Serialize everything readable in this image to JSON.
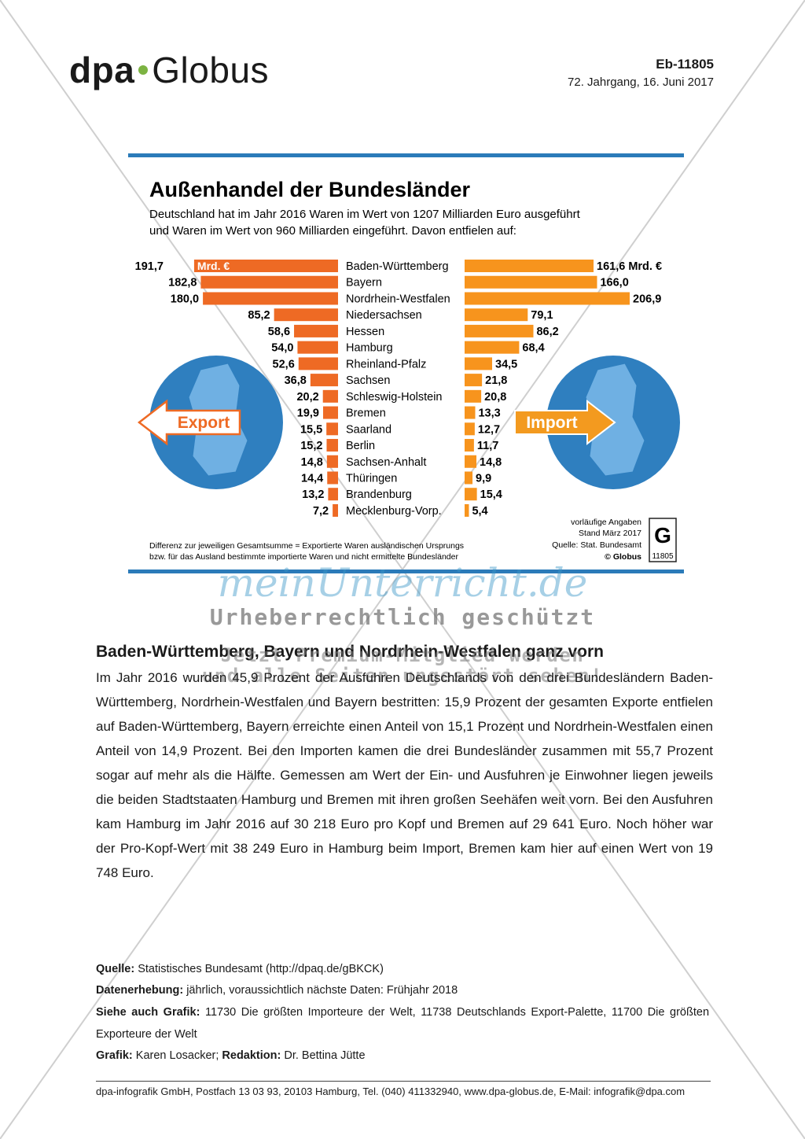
{
  "header": {
    "brand": "dpa",
    "brand2": "Globus",
    "code": "Eb-11805",
    "issue": "72. Jahrgang, 16. Juni 2017"
  },
  "chart_data": {
    "type": "butterfly-bar",
    "title": "Außenhandel der Bundesländer",
    "subtitle": [
      "Deutschland hat im Jahr 2016 Waren im Wert von 1207 Milliarden Euro ausgeführt",
      "und Waren im Wert von 960 Milliarden eingeführt. Davon entfielen auf:"
    ],
    "unit": "Mrd. €",
    "categories": [
      "Baden-Württemberg",
      "Bayern",
      "Nordrhein-Westfalen",
      "Niedersachsen",
      "Hessen",
      "Hamburg",
      "Rheinland-Pfalz",
      "Sachsen",
      "Schleswig-Holstein",
      "Bremen",
      "Saarland",
      "Berlin",
      "Sachsen-Anhalt",
      "Thüringen",
      "Brandenburg",
      "Mecklenburg-Vorp."
    ],
    "series": [
      {
        "name": "Export",
        "color": "#ee6a24",
        "values": [
          191.7,
          182.8,
          180.0,
          85.2,
          58.6,
          54.0,
          52.6,
          36.8,
          20.2,
          19.9,
          15.5,
          15.2,
          14.8,
          14.4,
          13.2,
          7.2
        ],
        "value_labels": [
          "191,7",
          "182,8",
          "180,0",
          "85,2",
          "58,6",
          "54,0",
          "52,6",
          "36,8",
          "20,2",
          "19,9",
          "15,5",
          "15,2",
          "14,8",
          "14,4",
          "13,2",
          "7,2"
        ]
      },
      {
        "name": "Import",
        "color": "#f7941d",
        "values": [
          161.6,
          166.0,
          206.9,
          79.1,
          86.2,
          68.4,
          34.5,
          21.8,
          20.8,
          13.3,
          12.7,
          11.7,
          14.8,
          9.9,
          15.4,
          5.4
        ],
        "value_labels": [
          "161,6",
          "166,0",
          "206,9",
          "79,1",
          "86,2",
          "68,4",
          "34,5",
          "21,8",
          "20,8",
          "13,3",
          "12,7",
          "11,7",
          "14,8",
          "9,9",
          "15,4",
          "5,4"
        ]
      }
    ],
    "note": [
      "Differenz zur jeweiligen Gesamtsumme = Exportierte Waren ausländischen Ursprungs",
      "bzw. für das Ausland bestimmte importierte Waren und nicht ermittelte Bundesländer"
    ],
    "source_notes": [
      "vorläufige Angaben",
      "Stand März 2017",
      "Quelle: Stat. Bundesamt",
      "© Globus"
    ],
    "badge": "11805"
  },
  "watermark": {
    "site": "meinUnterricht.de",
    "copyright": "Urheberrechtlich geschützt",
    "promo": [
      "Jetzt Premium-Mitglied werden",
      "und alle Seiten ungestört sehen!"
    ]
  },
  "article": {
    "heading": "Baden-Württemberg, Bayern und Nordrhein-Westfalen ganz vorn",
    "body": "Im Jahr 2016 wurden 45,9 Prozent der Ausfuhren Deutschlands von den drei Bundesländern Baden-Württemberg, Nordrhein-Westfalen und Bayern bestritten: 15,9 Prozent der gesamten Exporte entfielen auf Baden-Württemberg, Bayern erreichte einen Anteil von 15,1 Prozent und Nordrhein-Westfalen einen Anteil von 14,9 Prozent. Bei den Importen kamen die drei Bundesländer zusammen mit 55,7 Prozent sogar auf mehr als die Hälfte. Gemessen am Wert der Ein- und Ausfuhren je Einwohner liegen jeweils die beiden Stadtstaaten Hamburg und Bremen mit ihren großen Seehäfen weit vorn. Bei den Ausfuhren kam Hamburg im Jahr 2016 auf 30 218 Euro pro Kopf und Bremen auf 29 641 Euro. Noch höher war der Pro-Kopf-Wert mit 38 249 Euro in Hamburg beim Import, Bremen kam hier auf einen Wert von 19 748 Euro."
  },
  "sources": [
    {
      "label": "Quelle:",
      "text": "Statistisches Bundesamt (http://dpaq.de/gBKCK)"
    },
    {
      "label": "Datenerhebung:",
      "text": "jährlich, voraussichtlich nächste Daten: Frühjahr 2018"
    },
    {
      "label": "Siehe auch Grafik:",
      "text": "11730 Die größten Importeure der Welt, 11738 Deutschlands Export-Palette, 11700 Die größten Exporteure der Welt"
    },
    {
      "label": "Grafik:",
      "text": "Karen Losacker;",
      "label2": "Redaktion:",
      "text2": "Dr. Bettina Jütte"
    }
  ],
  "footer": "dpa-infografik GmbH, Postfach 13 03 93, 20103 Hamburg, Tel. (040) 411332940, www.dpa-globus.de, E-Mail: infografik@dpa.com"
}
